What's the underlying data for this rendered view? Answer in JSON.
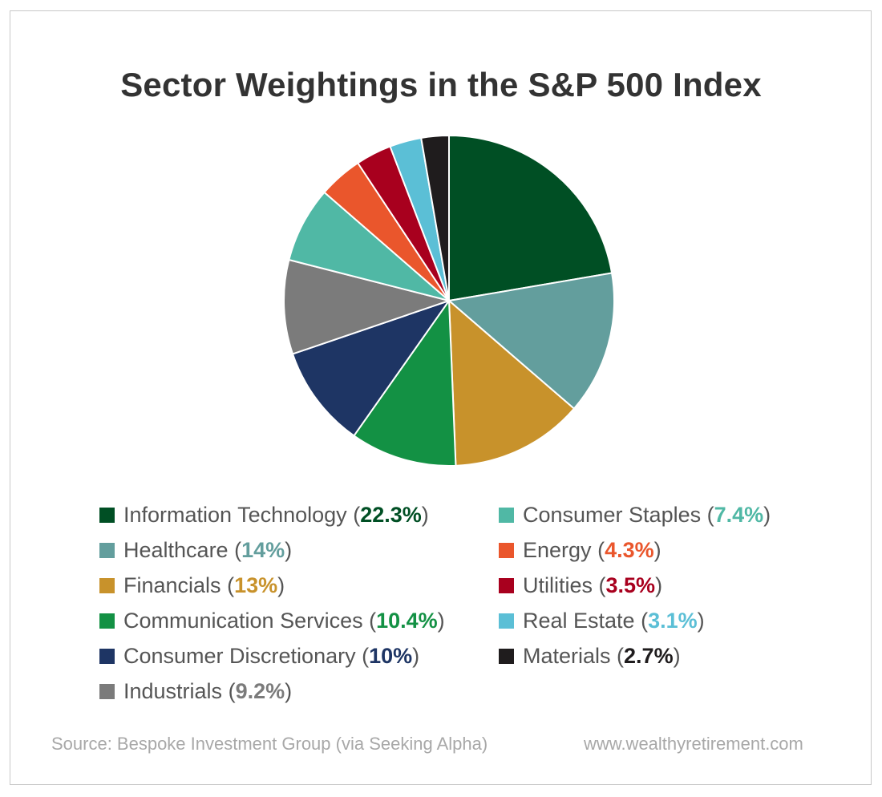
{
  "chart_data": {
    "type": "pie",
    "title": "Sector Weightings in the S&P 500 Index",
    "unit": "%",
    "slices": [
      {
        "label": "Information Technology",
        "value": 22.3,
        "value_text": "22.3%",
        "color": "#004f24"
      },
      {
        "label": "Healthcare",
        "value": 14,
        "value_text": "14%",
        "color": "#639e9d"
      },
      {
        "label": "Financials",
        "value": 13,
        "value_text": "13%",
        "color": "#c8922b"
      },
      {
        "label": "Communication Services",
        "value": 10.4,
        "value_text": "10.4%",
        "color": "#139144"
      },
      {
        "label": "Consumer Discretionary",
        "value": 10,
        "value_text": "10%",
        "color": "#1e3564"
      },
      {
        "label": "Industrials",
        "value": 9.2,
        "value_text": "9.2%",
        "color": "#7b7b7b"
      },
      {
        "label": "Consumer Staples",
        "value": 7.4,
        "value_text": "7.4%",
        "color": "#50b8a5"
      },
      {
        "label": "Energy",
        "value": 4.3,
        "value_text": "4.3%",
        "color": "#ea562c"
      },
      {
        "label": "Utilities",
        "value": 3.5,
        "value_text": "3.5%",
        "color": "#a8001e"
      },
      {
        "label": "Real Estate",
        "value": 3.1,
        "value_text": "3.1%",
        "color": "#5bbfd6"
      },
      {
        "label": "Materials",
        "value": 2.7,
        "value_text": "2.7%",
        "color": "#1f1c1d"
      }
    ],
    "legend_placement": "bottom"
  },
  "footer": {
    "source": "Source: Bespoke Investment Group (via Seeking Alpha)",
    "website": "www.wealthyretirement.com"
  }
}
